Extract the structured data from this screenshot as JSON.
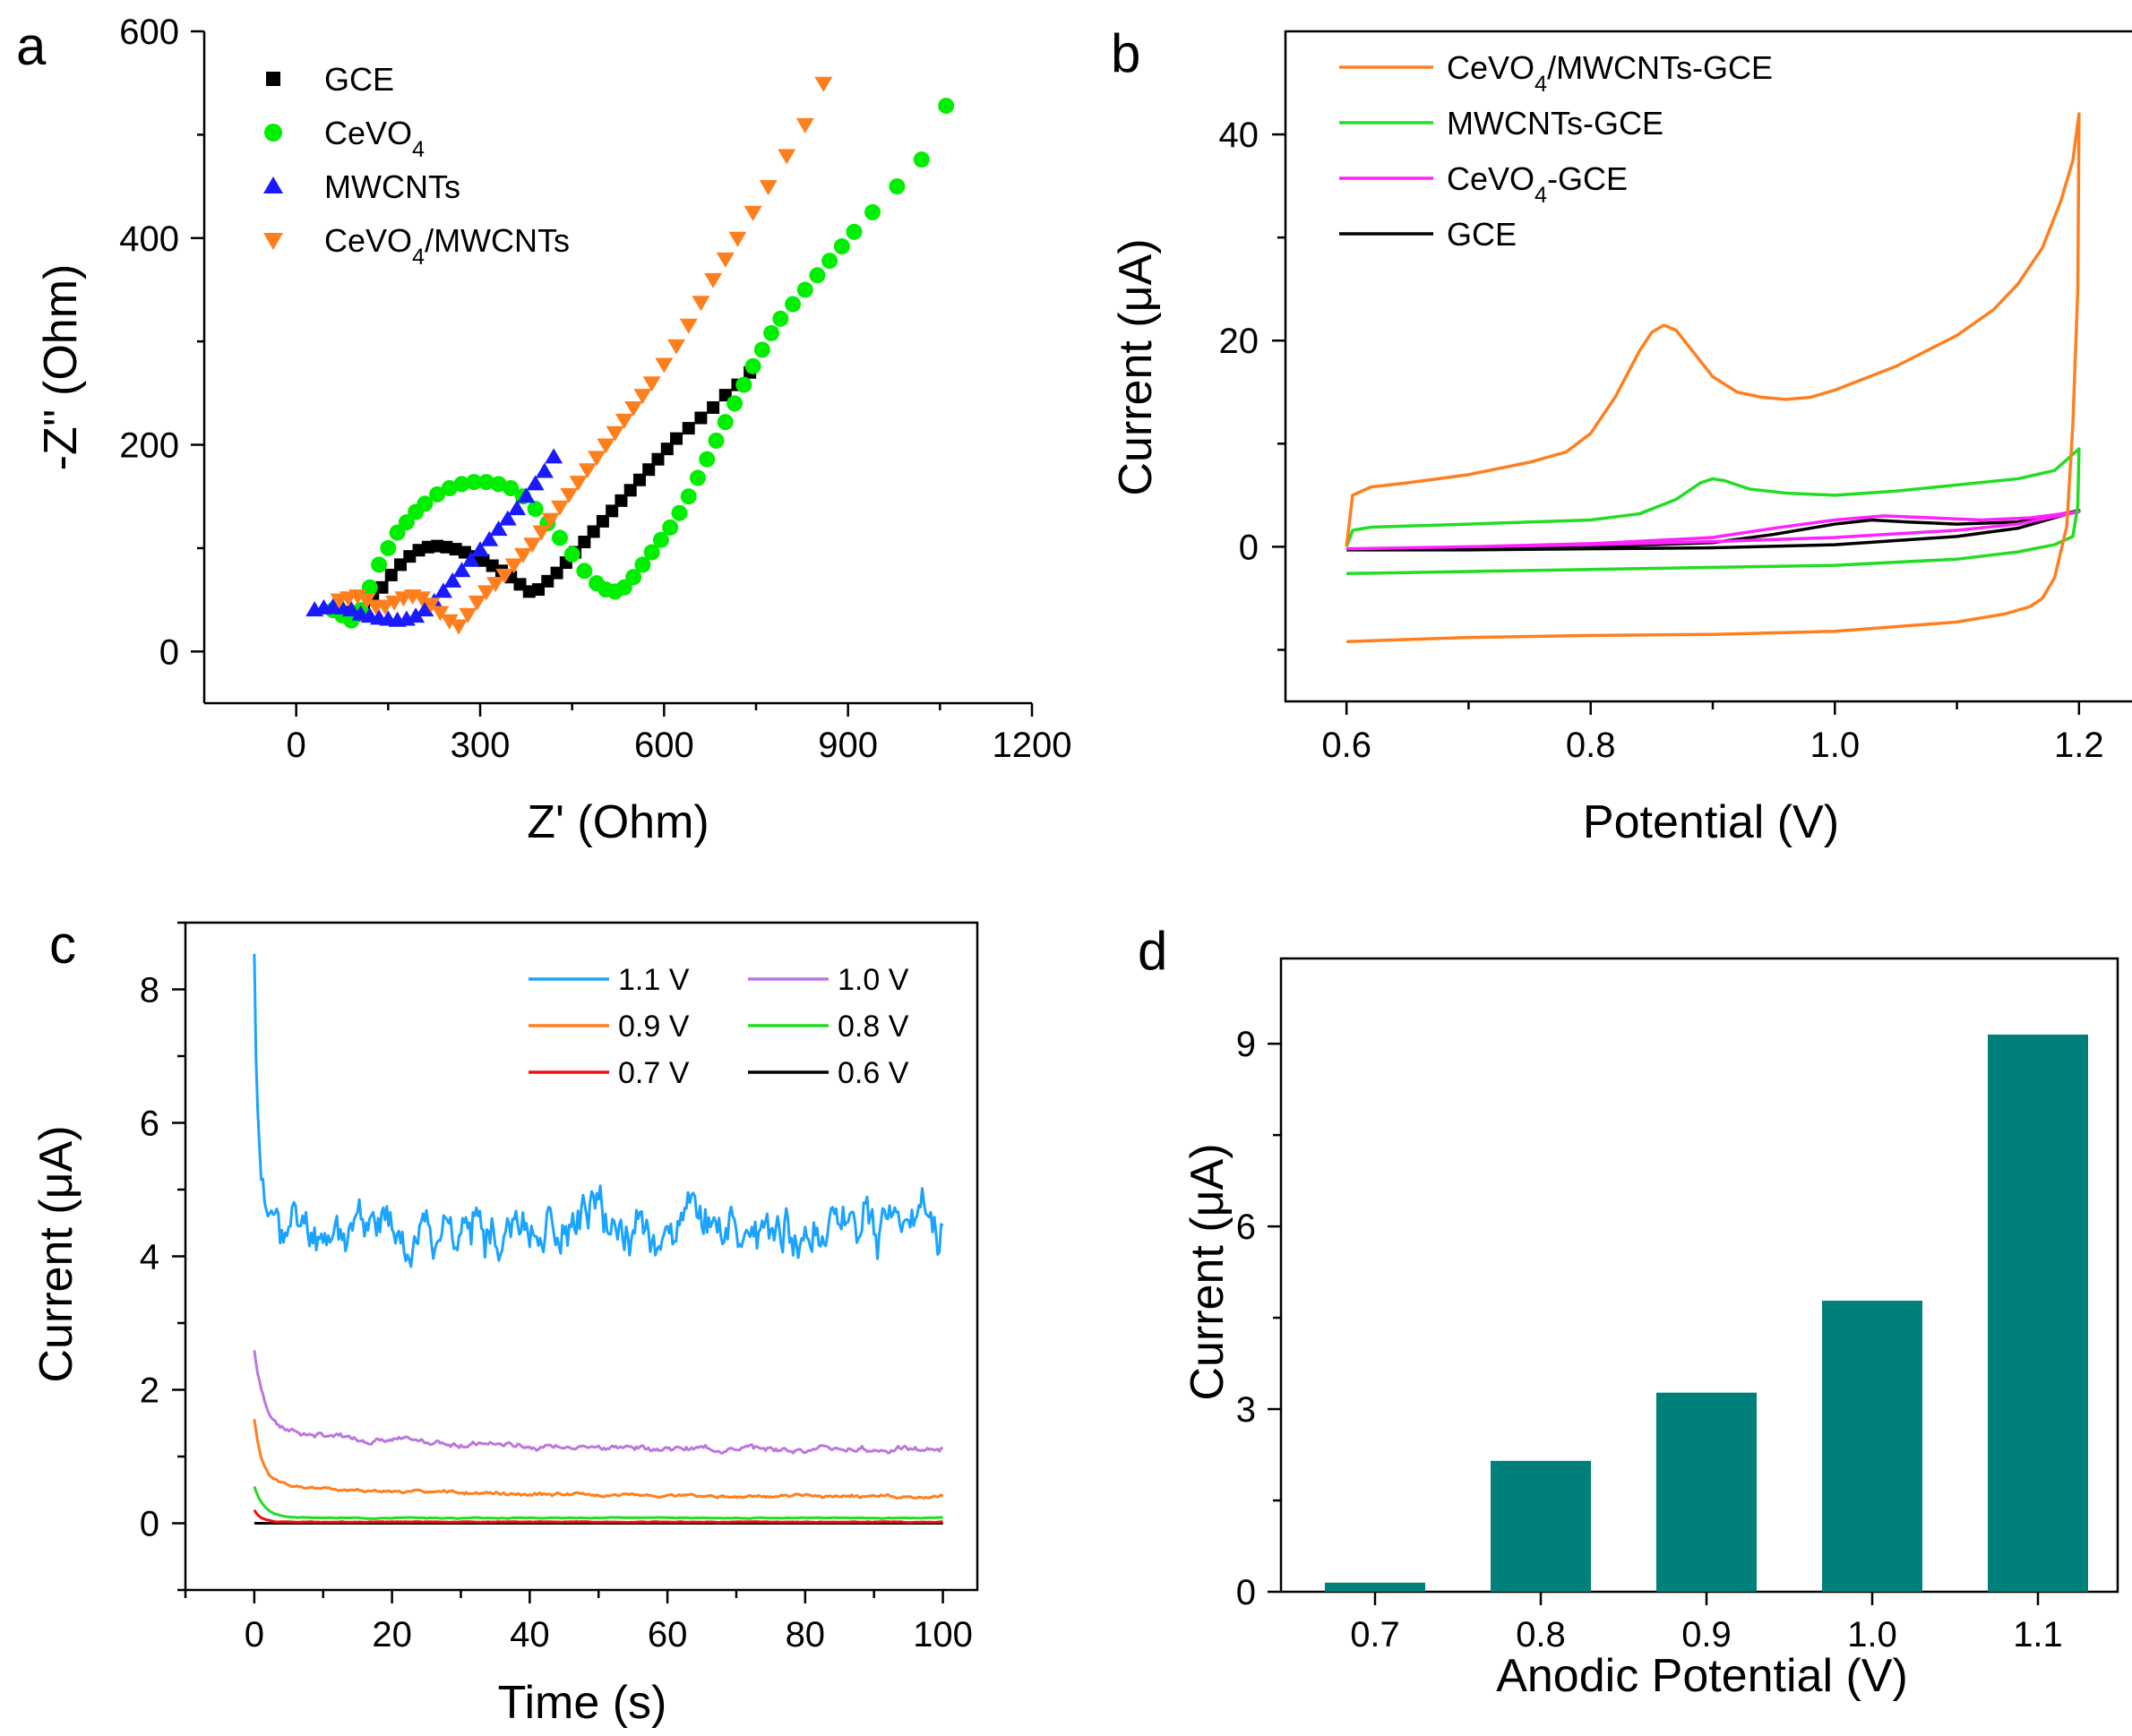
{
  "chart_data": [
    {
      "panel": "a",
      "type": "scatter",
      "xlabel": "Z' (Ohm)",
      "ylabel": "-Z'' (Ohm)",
      "xlim": [
        -150,
        1200
      ],
      "ylim": [
        -50,
        600
      ],
      "xticks": [
        0,
        300,
        600,
        900,
        1200
      ],
      "yticks": [
        0,
        200,
        400,
        600
      ],
      "legend_position": "top-left",
      "series": [
        {
          "name": "GCE",
          "sub": "",
          "rest": "",
          "color": "#000000",
          "marker": "square",
          "x": [
            80,
            95,
            110,
            125,
            140,
            155,
            170,
            185,
            200,
            215,
            230,
            245,
            260,
            275,
            290,
            305,
            320,
            335,
            350,
            365,
            380,
            395,
            410,
            425,
            440,
            455,
            470,
            485,
            500,
            515,
            530,
            545,
            560,
            575,
            590,
            605,
            620,
            640,
            660,
            680,
            700,
            720,
            740
          ],
          "y": [
            38,
            35,
            40,
            50,
            62,
            74,
            84,
            92,
            98,
            101,
            102,
            101,
            99,
            96,
            92,
            88,
            83,
            78,
            72,
            65,
            58,
            60,
            68,
            76,
            86,
            96,
            106,
            116,
            126,
            136,
            146,
            156,
            166,
            176,
            186,
            196,
            206,
            216,
            226,
            236,
            248,
            258,
            270
          ]
        },
        {
          "name": "CeVO",
          "sub": "4",
          "rest": "",
          "color": "#00ee00",
          "marker": "circle",
          "x": [
            60,
            75,
            90,
            105,
            120,
            135,
            150,
            165,
            180,
            195,
            210,
            230,
            250,
            270,
            290,
            310,
            330,
            350,
            370,
            390,
            410,
            430,
            450,
            470,
            490,
            505,
            520,
            535,
            550,
            565,
            580,
            595,
            610,
            625,
            640,
            655,
            670,
            685,
            700,
            715,
            730,
            745,
            760,
            775,
            790,
            810,
            830,
            850,
            870,
            890,
            910,
            940,
            980,
            1020,
            1060
          ],
          "y": [
            40,
            35,
            30,
            40,
            62,
            84,
            100,
            115,
            125,
            135,
            143,
            152,
            158,
            162,
            164,
            164,
            162,
            158,
            150,
            138,
            124,
            110,
            94,
            78,
            66,
            60,
            58,
            62,
            72,
            84,
            96,
            108,
            120,
            134,
            150,
            168,
            186,
            204,
            222,
            240,
            258,
            276,
            292,
            308,
            322,
            336,
            350,
            364,
            378,
            392,
            406,
            425,
            450,
            476,
            528
          ]
        },
        {
          "name": "MWCNTs",
          "sub": "",
          "rest": "",
          "color": "#1a1aff",
          "marker": "triangle-up",
          "x": [
            30,
            45,
            60,
            75,
            90,
            105,
            120,
            135,
            150,
            165,
            180,
            195,
            210,
            225,
            240,
            255,
            270,
            285,
            300,
            315,
            330,
            345,
            360,
            375,
            390,
            405,
            420
          ],
          "y": [
            40,
            42,
            43,
            42,
            40,
            36,
            34,
            32,
            31,
            30,
            31,
            34,
            40,
            48,
            58,
            68,
            78,
            88,
            98,
            108,
            118,
            128,
            138,
            150,
            162,
            174,
            188
          ]
        },
        {
          "name": "CeVO",
          "sub": "4",
          "rest": "/MWCNTs",
          "color": "#ff7f1e",
          "marker": "triangle-down",
          "x": [
            70,
            85,
            100,
            115,
            130,
            145,
            160,
            175,
            190,
            205,
            220,
            235,
            250,
            265,
            280,
            295,
            310,
            325,
            340,
            355,
            370,
            385,
            400,
            415,
            430,
            445,
            460,
            475,
            490,
            505,
            520,
            535,
            550,
            565,
            580,
            600,
            620,
            640,
            660,
            680,
            700,
            720,
            745,
            770,
            800,
            830,
            860
          ],
          "y": [
            50,
            52,
            54,
            50,
            44,
            44,
            48,
            52,
            54,
            52,
            46,
            38,
            30,
            25,
            36,
            48,
            58,
            66,
            74,
            84,
            94,
            104,
            116,
            128,
            140,
            152,
            164,
            176,
            188,
            200,
            212,
            224,
            236,
            248,
            260,
            278,
            296,
            316,
            338,
            360,
            380,
            400,
            425,
            450,
            480,
            510,
            550
          ]
        }
      ]
    },
    {
      "panel": "b",
      "type": "line",
      "xlabel": "Potential (V)",
      "ylabel": "Current (μA)",
      "xlim": [
        0.55,
        1.25
      ],
      "ylim": [
        -15,
        50
      ],
      "xticks": [
        0.6,
        0.8,
        1.0,
        1.2
      ],
      "yticks": [
        0,
        20,
        40
      ],
      "legend_position": "top-left",
      "series": [
        {
          "name": "CeVO",
          "sub": "4",
          "rest": "/MWCNTs-GCE",
          "color": "#ff7f1e",
          "forward": {
            "x": [
              0.6,
              0.605,
              0.62,
              0.65,
              0.7,
              0.75,
              0.78,
              0.8,
              0.82,
              0.84,
              0.85,
              0.86,
              0.87,
              0.88,
              0.9,
              0.92,
              0.94,
              0.96,
              0.98,
              1.0,
              1.05,
              1.1,
              1.13,
              1.15,
              1.17,
              1.185,
              1.195,
              1.2
            ],
            "y": [
              0,
              5.0,
              5.8,
              6.2,
              7.0,
              8.2,
              9.2,
              11.0,
              14.5,
              19.0,
              20.8,
              21.5,
              21.0,
              19.5,
              16.5,
              15.0,
              14.5,
              14.3,
              14.5,
              15.2,
              17.5,
              20.5,
              23.0,
              25.5,
              29.0,
              33.5,
              37.5,
              42.0
            ]
          },
          "reverse": {
            "x": [
              1.2,
              1.199,
              1.195,
              1.19,
              1.18,
              1.17,
              1.16,
              1.14,
              1.1,
              1.0,
              0.9,
              0.8,
              0.7,
              0.6
            ],
            "y": [
              42.0,
              25.0,
              12.0,
              2.0,
              -3.0,
              -5.0,
              -5.8,
              -6.5,
              -7.3,
              -8.2,
              -8.5,
              -8.6,
              -8.8,
              -9.2
            ]
          }
        },
        {
          "name": "MWCNTs-GCE",
          "sub": "",
          "rest": "",
          "color": "#22dd22",
          "forward": {
            "x": [
              0.6,
              0.605,
              0.62,
              0.7,
              0.8,
              0.84,
              0.87,
              0.89,
              0.9,
              0.91,
              0.93,
              0.96,
              1.0,
              1.05,
              1.1,
              1.15,
              1.18,
              1.2
            ],
            "y": [
              0,
              1.6,
              1.9,
              2.2,
              2.6,
              3.2,
              4.6,
              6.2,
              6.6,
              6.4,
              5.6,
              5.2,
              5.0,
              5.4,
              6.0,
              6.6,
              7.4,
              9.5
            ]
          },
          "reverse": {
            "x": [
              1.2,
              1.199,
              1.195,
              1.18,
              1.15,
              1.1,
              1.0,
              0.9,
              0.8,
              0.7,
              0.6
            ],
            "y": [
              9.5,
              4.0,
              1.0,
              0.2,
              -0.5,
              -1.2,
              -1.8,
              -2.0,
              -2.2,
              -2.4,
              -2.6
            ]
          }
        },
        {
          "name": "CeVO",
          "sub": "4",
          "rest": "-GCE",
          "color": "#ff22ff",
          "forward": {
            "x": [
              0.6,
              0.7,
              0.8,
              0.9,
              0.95,
              1.0,
              1.04,
              1.08,
              1.12,
              1.16,
              1.2
            ],
            "y": [
              -0.2,
              0.0,
              0.3,
              0.9,
              1.8,
              2.6,
              3.0,
              2.8,
              2.6,
              2.8,
              3.4
            ]
          },
          "reverse": {
            "x": [
              1.2,
              1.15,
              1.1,
              1.0,
              0.9,
              0.8,
              0.7,
              0.6
            ],
            "y": [
              3.4,
              2.2,
              1.6,
              0.9,
              0.5,
              0.2,
              0.0,
              -0.2
            ]
          }
        },
        {
          "name": "GCE",
          "sub": "",
          "rest": "",
          "color": "#000000",
          "forward": {
            "x": [
              0.6,
              0.7,
              0.8,
              0.9,
              0.95,
              1.0,
              1.03,
              1.06,
              1.1,
              1.15,
              1.2
            ],
            "y": [
              -0.3,
              -0.2,
              0.0,
              0.4,
              1.2,
              2.2,
              2.6,
              2.4,
              2.2,
              2.4,
              3.5
            ]
          },
          "reverse": {
            "x": [
              1.2,
              1.15,
              1.1,
              1.0,
              0.9,
              0.8,
              0.7,
              0.6
            ],
            "y": [
              3.5,
              1.8,
              1.0,
              0.2,
              -0.1,
              -0.2,
              -0.3,
              -0.3
            ]
          }
        }
      ]
    },
    {
      "panel": "c",
      "type": "line",
      "xlabel": "Time (s)",
      "ylabel": "Current (μA)",
      "xlim": [
        -10,
        105
      ],
      "ylim": [
        -1,
        9
      ],
      "xticks": [
        0,
        20,
        40,
        60,
        80,
        100
      ],
      "yticks": [
        0,
        2,
        4,
        6,
        8
      ],
      "legend_position": "top-right",
      "series": [
        {
          "name": "1.1 V",
          "color": "#1aa3ff",
          "start": 8.4,
          "steady": 4.45,
          "tau": 0.6,
          "noise": 0.33,
          "seed": 11
        },
        {
          "name": "1.0 V",
          "color": "#bb77dd",
          "start": 2.6,
          "steady": 1.1,
          "tau": 1.5,
          "noise": 0.035,
          "seed": 7,
          "slope": 0.9
        },
        {
          "name": "0.9 V",
          "color": "#ff7f1e",
          "start": 1.55,
          "steady": 0.4,
          "tau": 1.2,
          "noise": 0.02,
          "seed": 5,
          "slope": 0.5
        },
        {
          "name": "0.8 V",
          "color": "#22dd22",
          "start": 0.55,
          "steady": 0.08,
          "tau": 1.5,
          "noise": 0.005,
          "seed": 3
        },
        {
          "name": "0.7 V",
          "color": "#ee1111",
          "start": 0.2,
          "steady": 0.02,
          "tau": 1.0,
          "noise": 0.004,
          "seed": 2
        },
        {
          "name": "0.6 V",
          "color": "#000000",
          "start": 0.0,
          "steady": 0.0,
          "tau": 1.0,
          "noise": 0.0,
          "seed": 1
        }
      ]
    },
    {
      "panel": "d",
      "type": "bar",
      "xlabel": "Anodic Potential (V)",
      "ylabel": "Current (μA)",
      "categories": [
        "0.7",
        "0.8",
        "0.9",
        "1.0",
        "1.1"
      ],
      "values": [
        0.15,
        2.15,
        3.27,
        4.78,
        9.15
      ],
      "ylim": [
        0,
        10
      ],
      "yticks": [
        0,
        3,
        6,
        9
      ],
      "bar_color": "#00807a"
    }
  ]
}
